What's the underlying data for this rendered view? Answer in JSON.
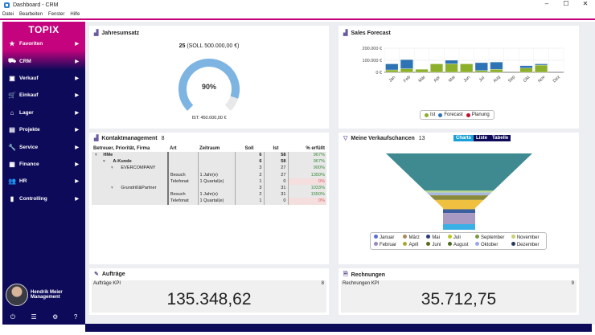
{
  "window": {
    "title": "Dashboard - CRM",
    "controls": [
      "–",
      "☐",
      "✕"
    ]
  },
  "menu": [
    "Datei",
    "Bearbeiten",
    "Fenster",
    "Hilfe"
  ],
  "sidebar": {
    "brand": "TOPIX",
    "items": [
      {
        "label": "Favoriten",
        "icon": "★"
      },
      {
        "label": "CRM",
        "icon": "⛟"
      },
      {
        "label": "Verkauf",
        "icon": "▣"
      },
      {
        "label": "Einkauf",
        "icon": "🛒"
      },
      {
        "label": "Lager",
        "icon": "⌂"
      },
      {
        "label": "Projekte",
        "icon": "▤"
      },
      {
        "label": "Service",
        "icon": "🔧"
      },
      {
        "label": "Finance",
        "icon": "▦"
      },
      {
        "label": "HR",
        "icon": "👥"
      },
      {
        "label": "Controlling",
        "icon": "▮"
      }
    ],
    "user": {
      "name": "Hendrik Meier",
      "role": "Management"
    },
    "footer": [
      "⏻",
      "☰",
      "⚙",
      "?"
    ]
  },
  "jahresumsatz": {
    "title": "Jahresumsatz",
    "count": "25",
    "soll": "(SOLL 500.000,00 €)",
    "percent_label": "90%",
    "percent": 90,
    "ist": "IST: 450.000,00 €"
  },
  "sales": {
    "title": "Sales Forecast"
  },
  "chart_data": {
    "type": "bar",
    "stacked": true,
    "title": "Sales Forecast",
    "categories": [
      "Jan",
      "Feb",
      "Mär",
      "Apr",
      "Mai",
      "Jun",
      "Jul",
      "Aug",
      "Sep",
      "Okt",
      "Nov",
      "Dez"
    ],
    "series": [
      {
        "name": "Ist",
        "color": "#8db02c",
        "values": [
          20000,
          30000,
          25000,
          70000,
          70000,
          70000,
          15000,
          25000,
          0,
          35000,
          60000,
          0
        ]
      },
      {
        "name": "Forecast",
        "color": "#2e74b5",
        "values": [
          50000,
          75000,
          0,
          0,
          30000,
          0,
          65000,
          60000,
          0,
          20000,
          10000,
          0
        ]
      },
      {
        "name": "Planung",
        "color": "#c0102a",
        "values": [
          0,
          0,
          0,
          0,
          0,
          0,
          0,
          0,
          0,
          0,
          0,
          0
        ]
      }
    ],
    "yticks": [
      "0 €",
      "100.000 €",
      "200.000 €"
    ],
    "ylim": [
      0,
      200000
    ],
    "legend": "bottom"
  },
  "kontakt": {
    "title": "Kontaktmanagement",
    "count": "8",
    "headers": [
      "Betreuer, Priorität, Firma",
      "Art",
      "Zeitraum",
      "Soll",
      "Ist",
      "% erfüllt"
    ],
    "rows": [
      {
        "level": 0,
        "label": "HMe",
        "art": "",
        "zeit": "",
        "soll": "6",
        "ist": "58",
        "pct": "967%",
        "bold": true
      },
      {
        "level": 1,
        "label": "A-Kunde",
        "art": "",
        "zeit": "",
        "soll": "6",
        "ist": "58",
        "pct": "967%",
        "bold": true
      },
      {
        "level": 2,
        "label": "EVERCOMPANY",
        "art": "",
        "zeit": "",
        "soll": "3",
        "ist": "27",
        "pct": "900%"
      },
      {
        "level": 3,
        "label": "",
        "art": "Besuch",
        "zeit": "1 Jahr(e)",
        "soll": "2",
        "ist": "27",
        "pct": "1350%"
      },
      {
        "level": 3,
        "label": "",
        "art": "Telefonat",
        "zeit": "1 Quartal(e)",
        "soll": "1",
        "ist": "0",
        "pct": "0%",
        "zero": true
      },
      {
        "level": 2,
        "label": "Grundriß&Partner",
        "art": "",
        "zeit": "",
        "soll": "3",
        "ist": "31",
        "pct": "1033%"
      },
      {
        "level": 3,
        "label": "",
        "art": "Besuch",
        "zeit": "1 Jahr(e)",
        "soll": "2",
        "ist": "31",
        "pct": "1550%"
      },
      {
        "level": 3,
        "label": "",
        "art": "Telefonat",
        "zeit": "1 Quartal(e)",
        "soll": "1",
        "ist": "0",
        "pct": "0%",
        "zero": true
      }
    ]
  },
  "chancen": {
    "title": "Meine Verkaufschancen",
    "count": "13",
    "tabs": [
      "Charts",
      "Liste",
      "Tabelle"
    ],
    "funnel": [
      {
        "color": "#3f8a91",
        "value": 40
      },
      {
        "color": "#b9d88a",
        "value": 2
      },
      {
        "color": "#a6b7e0",
        "value": 3
      },
      {
        "color": "#8a8a3a",
        "value": 5
      },
      {
        "color": "#f0c040",
        "value": 10
      },
      {
        "color": "#3a5e9e",
        "value": 4
      },
      {
        "color": "#a99ac4",
        "value": 12
      },
      {
        "color": "#3ab0e6",
        "value": 6
      }
    ],
    "legend": [
      {
        "label": "Januar",
        "color": "#5a6fd0"
      },
      {
        "label": "Februar",
        "color": "#9a88c0"
      },
      {
        "label": "März",
        "color": "#a88a5a"
      },
      {
        "label": "April",
        "color": "#a8a830"
      },
      {
        "label": "Mai",
        "color": "#2a3a80"
      },
      {
        "label": "Juni",
        "color": "#5a6a20"
      },
      {
        "label": "Juli",
        "color": "#b8c820"
      },
      {
        "label": "August",
        "color": "#4a6a20"
      },
      {
        "label": "September",
        "color": "#7a9a40"
      },
      {
        "label": "Oktober",
        "color": "#98a8e8"
      },
      {
        "label": "November",
        "color": "#c8d070"
      },
      {
        "label": "Dezember",
        "color": "#2a3a60"
      }
    ]
  },
  "auftraege": {
    "title": "Aufträge",
    "kpi_label": "Aufträge KPI",
    "count": "8",
    "value": "135.348,62"
  },
  "rechnungen": {
    "title": "Rechnungen",
    "kpi_label": "Rechnungen KPI",
    "count": "9",
    "value": "35.712,75"
  }
}
